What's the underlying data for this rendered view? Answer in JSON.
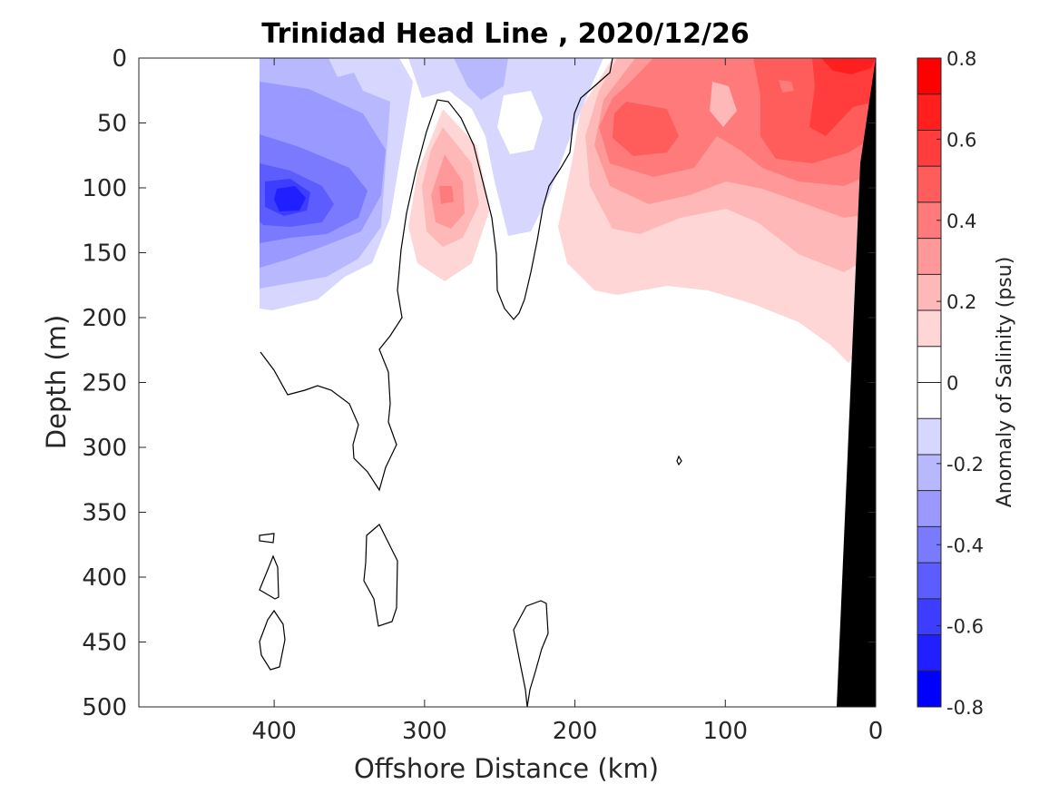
{
  "chart_data": {
    "type": "heatmap",
    "title": "Trinidad Head Line , 2020/12/26",
    "xlabel": "Offshore Distance (km)",
    "ylabel": "Depth (m)",
    "xlim": [
      490,
      0
    ],
    "ylim": [
      0,
      500
    ],
    "x_reversed": true,
    "y_reversed": true,
    "x_ticks": [
      400,
      300,
      200,
      100,
      0
    ],
    "y_ticks": [
      0,
      50,
      100,
      150,
      200,
      250,
      300,
      350,
      400,
      450,
      500
    ],
    "colorbar": {
      "label": "Anomaly of Salinity (psu)",
      "range": [
        -0.8,
        0.8
      ],
      "step": 0.1,
      "ticks": [
        0.8,
        0.6,
        0.4,
        0.2,
        0,
        -0.2,
        -0.4,
        -0.6,
        -0.8
      ],
      "colors": [
        "#0000ff",
        "#1f1fff",
        "#3d3dff",
        "#5c5cff",
        "#7a7aff",
        "#9999ff",
        "#b8b8ff",
        "#d6d6ff",
        "#ffffff",
        "#ffffff",
        "#ffd6d6",
        "#ffb8b8",
        "#ff9999",
        "#ff7a7a",
        "#ff5c5c",
        "#ff3d3d",
        "#ff1f1f",
        "#ff0000"
      ]
    },
    "anomaly_features": [
      {
        "label": "negative core",
        "x_km": 390,
        "depth_m": 105,
        "value": -0.6
      },
      {
        "label": "negative near-surface",
        "x_km": 255,
        "depth_m": 15,
        "value": -0.3
      },
      {
        "label": "positive intrusion",
        "x_km": 285,
        "depth_m": 100,
        "value": 0.4
      },
      {
        "label": "positive core",
        "x_km": 150,
        "depth_m": 60,
        "value": 0.5
      },
      {
        "label": "positive coastal maximum",
        "x_km": 25,
        "depth_m": 10,
        "value": 0.7
      }
    ],
    "shelf_bottom_mask": {
      "color": "#000000",
      "outline": [
        [
          0,
          0
        ],
        [
          0,
          500
        ],
        [
          25,
          500
        ],
        [
          10,
          80
        ]
      ]
    }
  }
}
